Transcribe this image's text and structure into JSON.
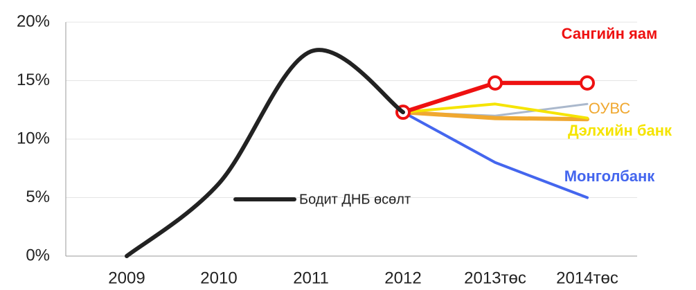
{
  "chart_data": {
    "type": "line",
    "categories": [
      "2009",
      "2010",
      "2011",
      "2012",
      "2013төс",
      "2014төс"
    ],
    "series": [
      {
        "name": "Бодит ДНБ өсөлт",
        "color": "#222222",
        "values": [
          0,
          6.2,
          17.5,
          12.3,
          null,
          null
        ]
      },
      {
        "name": "Сангийн яам",
        "color": "#ee1111",
        "values": [
          null,
          null,
          null,
          12.3,
          14.8,
          14.8
        ]
      },
      {
        "color": "#aab8cc",
        "values": [
          null,
          null,
          null,
          12.3,
          12.0,
          13.0
        ]
      },
      {
        "name": "ОУВС",
        "color": "#f0a830",
        "values": [
          null,
          null,
          null,
          12.3,
          11.8,
          11.7
        ]
      },
      {
        "name": "Дэлхийн банк",
        "color": "#f5e400",
        "values": [
          null,
          null,
          null,
          12.3,
          13.0,
          11.8
        ]
      },
      {
        "name": "Монголбанк",
        "color": "#4466ee",
        "values": [
          null,
          null,
          null,
          12.3,
          8.0,
          5.0
        ]
      }
    ],
    "ylim": [
      0,
      20
    ],
    "yticks": [
      {
        "value": 0,
        "label": "0%"
      },
      {
        "value": 5,
        "label": "5%"
      },
      {
        "value": 10,
        "label": "10%"
      },
      {
        "value": 15,
        "label": "15%"
      },
      {
        "value": 20,
        "label": "20%"
      }
    ],
    "grid": true
  }
}
